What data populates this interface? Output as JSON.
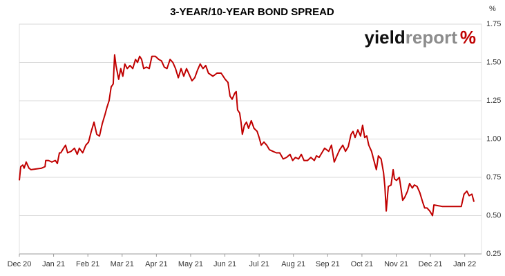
{
  "chart_data": {
    "type": "line",
    "title": "3-YEAR/10-YEAR BOND SPREAD",
    "unit": "%",
    "logo": {
      "part1": "yield",
      "part2": "report",
      "part3": "%"
    },
    "xlim": [
      0,
      13.49
    ],
    "xticks": [
      {
        "value": 0,
        "label": "Dec 20"
      },
      {
        "value": 1,
        "label": "Jan 21"
      },
      {
        "value": 2,
        "label": "Feb 21"
      },
      {
        "value": 3,
        "label": "Mar 21"
      },
      {
        "value": 4,
        "label": "Apr 21"
      },
      {
        "value": 5,
        "label": "May 21"
      },
      {
        "value": 6,
        "label": "Jun 21"
      },
      {
        "value": 7,
        "label": "Jul 21"
      },
      {
        "value": 8,
        "label": "Aug 21"
      },
      {
        "value": 9,
        "label": "Sep 21"
      },
      {
        "value": 10,
        "label": "Oct 21"
      },
      {
        "value": 11,
        "label": "Nov 21"
      },
      {
        "value": 12,
        "label": "Dec 21"
      },
      {
        "value": 13,
        "label": "Jan 22"
      }
    ],
    "ylim": [
      0.25,
      1.75
    ],
    "yticks": [
      0.25,
      {
        "value": 0.5,
        "label": "0.50"
      },
      0.75,
      {
        "value": 1,
        "label": "1.00"
      },
      1.25,
      {
        "value": 1.5,
        "label": "1.50"
      },
      1.75
    ],
    "grid": true,
    "x": [
      0,
      0.04,
      0.1,
      0.14,
      0.2,
      0.28,
      0.34,
      0.65,
      0.75,
      0.77,
      0.85,
      0.95,
      1.05,
      1.11,
      1.17,
      1.21,
      1.29,
      1.35,
      1.41,
      1.51,
      1.61,
      1.69,
      1.75,
      1.85,
      1.94,
      2.02,
      2.1,
      2.18,
      2.26,
      2.34,
      2.42,
      2.5,
      2.56,
      2.62,
      2.68,
      2.74,
      2.78,
      2.82,
      2.9,
      2.96,
      3.02,
      3.08,
      3.15,
      3.23,
      3.31,
      3.39,
      3.45,
      3.51,
      3.57,
      3.63,
      3.71,
      3.79,
      3.87,
      3.97,
      4.07,
      4.15,
      4.23,
      4.31,
      4.4,
      4.48,
      4.56,
      4.64,
      4.72,
      4.8,
      4.88,
      4.96,
      5.04,
      5.12,
      5.2,
      5.28,
      5.36,
      5.44,
      5.52,
      5.65,
      5.77,
      5.89,
      6.01,
      6.09,
      6.15,
      6.21,
      6.29,
      6.33,
      6.37,
      6.43,
      6.47,
      6.51,
      6.57,
      6.63,
      6.69,
      6.77,
      6.85,
      6.94,
      7.0,
      7.06,
      7.14,
      7.22,
      7.3,
      7.4,
      7.5,
      7.6,
      7.7,
      7.8,
      7.9,
      7.98,
      8.06,
      8.15,
      8.23,
      8.31,
      8.41,
      8.51,
      8.61,
      8.67,
      8.75,
      8.83,
      8.91,
      9.03,
      9.11,
      9.19,
      9.27,
      9.35,
      9.44,
      9.52,
      9.6,
      9.68,
      9.74,
      9.8,
      9.88,
      9.96,
      10.02,
      10.08,
      10.14,
      10.2,
      10.28,
      10.36,
      10.42,
      10.48,
      10.56,
      10.63,
      10.67,
      10.71,
      10.77,
      10.85,
      10.91,
      10.95,
      11.01,
      11.09,
      11.13,
      11.19,
      11.25,
      11.33,
      11.39,
      11.47,
      11.53,
      11.61,
      11.69,
      11.77,
      11.83,
      11.9,
      11.98,
      12.06,
      12.1,
      12.34,
      12.9,
      12.98,
      13.06,
      13.13,
      13.21,
      13.27
    ],
    "series": [
      {
        "color": "#c00000",
        "values": [
          0.73,
          0.82,
          0.83,
          0.81,
          0.85,
          0.81,
          0.8,
          0.81,
          0.82,
          0.86,
          0.86,
          0.85,
          0.86,
          0.84,
          0.91,
          0.91,
          0.94,
          0.96,
          0.91,
          0.92,
          0.94,
          0.9,
          0.94,
          0.91,
          0.96,
          0.98,
          1.05,
          1.11,
          1.03,
          1.02,
          1.1,
          1.16,
          1.21,
          1.25,
          1.34,
          1.36,
          1.55,
          1.48,
          1.39,
          1.46,
          1.41,
          1.49,
          1.46,
          1.48,
          1.46,
          1.52,
          1.5,
          1.54,
          1.52,
          1.46,
          1.47,
          1.46,
          1.54,
          1.54,
          1.52,
          1.51,
          1.47,
          1.46,
          1.52,
          1.5,
          1.46,
          1.4,
          1.46,
          1.41,
          1.46,
          1.42,
          1.38,
          1.4,
          1.45,
          1.49,
          1.46,
          1.48,
          1.43,
          1.41,
          1.43,
          1.43,
          1.39,
          1.37,
          1.28,
          1.26,
          1.3,
          1.31,
          1.19,
          1.17,
          1.11,
          1.03,
          1.09,
          1.11,
          1.07,
          1.12,
          1.07,
          1.05,
          1.01,
          0.96,
          0.98,
          0.96,
          0.93,
          0.92,
          0.91,
          0.91,
          0.87,
          0.88,
          0.9,
          0.86,
          0.88,
          0.87,
          0.9,
          0.86,
          0.86,
          0.88,
          0.86,
          0.89,
          0.88,
          0.91,
          0.94,
          0.92,
          0.96,
          0.85,
          0.89,
          0.93,
          0.96,
          0.92,
          0.95,
          1.03,
          1.05,
          1.01,
          1.06,
          1.02,
          1.09,
          1.01,
          1.02,
          0.96,
          0.92,
          0.85,
          0.8,
          0.89,
          0.87,
          0.78,
          0.69,
          0.53,
          0.69,
          0.7,
          0.8,
          0.74,
          0.73,
          0.75,
          0.69,
          0.6,
          0.62,
          0.66,
          0.71,
          0.68,
          0.7,
          0.69,
          0.65,
          0.59,
          0.55,
          0.55,
          0.53,
          0.5,
          0.57,
          0.56,
          0.56,
          0.64,
          0.66,
          0.63,
          0.64,
          0.59
        ]
      }
    ]
  }
}
